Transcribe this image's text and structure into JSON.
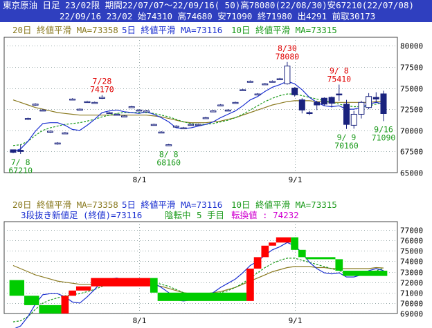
{
  "header": {
    "line1": "東京原油 日足 23/02限 期間22/07/07～22/09/16( 50)高78080(22/08/30)安67210(22/07/08)",
    "line2": "22/09/16 23/02 始74310 高74680 安71090 終71980 出4291 前取30173"
  },
  "legend_top": {
    "ma20": "20日 終値平滑 MA=73358",
    "ma5": "5日 終値平滑 MA=73116",
    "ma10": "10日 終値平滑 MA=73315"
  },
  "legend_bottom": {
    "ma20": "20日 終値平滑 MA=73358",
    "ma5": "5日 終値平滑 MA=73116",
    "ma10": "10日 終値平滑 MA=73315",
    "status_prefix": "3段抜き新値足 (終値)=73116",
    "status_reversal": "陰転中",
    "status_count": "5 手目",
    "status_turn": "転換値 : 74232"
  },
  "colors": {
    "header_bg": "#2f3fbf",
    "ma5": "#1a2fd0",
    "ma10": "#1a9a1a",
    "ma20": "#8a7a20",
    "up": "#ff0000",
    "down": "#00cc00",
    "candle": "#1a237e",
    "reversal": "#d000d0"
  },
  "chart_data": [
    {
      "type": "candlestick",
      "title": "東京原油 日足 23/02限",
      "x_ticks": [
        {
          "i": 17,
          "label": "8/1"
        },
        {
          "i": 38,
          "label": "9/1"
        }
      ],
      "ylim": [
        65000,
        81000
      ],
      "y_ticks": [
        65000,
        67500,
        70000,
        72500,
        75000,
        77500,
        80000
      ],
      "candles": [
        {
          "o": 67700,
          "h": 67700,
          "l": 67300,
          "c": 67400
        },
        {
          "o": 67650,
          "h": 68300,
          "l": 67210,
          "c": 67500
        },
        {
          "o": 71300,
          "h": 71500,
          "l": 71200,
          "c": 71400
        },
        {
          "o": 73000,
          "h": 73200,
          "l": 72900,
          "c": 73100
        },
        {
          "o": 72400,
          "h": 72500,
          "l": 72300,
          "c": 72400
        },
        {
          "o": 69800,
          "h": 70000,
          "l": 69700,
          "c": 69900
        },
        {
          "o": 68400,
          "h": 68600,
          "l": 68300,
          "c": 68500
        },
        {
          "o": 69700,
          "h": 69800,
          "l": 69600,
          "c": 69700
        },
        {
          "o": 73700,
          "h": 73800,
          "l": 73600,
          "c": 73700
        },
        {
          "o": 72500,
          "h": 72600,
          "l": 72400,
          "c": 72500
        },
        {
          "o": 73400,
          "h": 73500,
          "l": 73300,
          "c": 73400
        },
        {
          "o": 73300,
          "h": 73400,
          "l": 73200,
          "c": 73300
        },
        {
          "o": 73800,
          "h": 74170,
          "l": 73700,
          "c": 73900
        },
        {
          "o": 72100,
          "h": 72200,
          "l": 72000,
          "c": 72100
        },
        {
          "o": 71900,
          "h": 72000,
          "l": 71800,
          "c": 71900
        },
        {
          "o": 71700,
          "h": 71800,
          "l": 71600,
          "c": 71700
        },
        {
          "o": 72800,
          "h": 72900,
          "l": 72700,
          "c": 72800
        },
        {
          "o": 72400,
          "h": 72500,
          "l": 72300,
          "c": 72400
        },
        {
          "o": 72300,
          "h": 72400,
          "l": 72200,
          "c": 72300
        },
        {
          "o": 70700,
          "h": 70800,
          "l": 70600,
          "c": 70700
        },
        {
          "o": 69800,
          "h": 69900,
          "l": 69700,
          "c": 69800
        },
        {
          "o": 68300,
          "h": 68400,
          "l": 68160,
          "c": 68300
        },
        {
          "o": 70500,
          "h": 70600,
          "l": 70400,
          "c": 70500
        },
        {
          "o": 70300,
          "h": 70400,
          "l": 70200,
          "c": 70300
        },
        {
          "o": 70700,
          "h": 70800,
          "l": 70600,
          "c": 70700
        },
        {
          "o": 70700,
          "h": 70800,
          "l": 70600,
          "c": 70700
        },
        {
          "o": 71500,
          "h": 71600,
          "l": 71400,
          "c": 71500
        },
        {
          "o": 72300,
          "h": 72400,
          "l": 72200,
          "c": 72300
        },
        {
          "o": 73000,
          "h": 73100,
          "l": 72900,
          "c": 73000
        },
        {
          "o": 72400,
          "h": 72500,
          "l": 72300,
          "c": 72400
        },
        {
          "o": 73300,
          "h": 73400,
          "l": 73200,
          "c": 73300
        },
        {
          "o": 74800,
          "h": 74900,
          "l": 74700,
          "c": 74800
        },
        {
          "o": 75800,
          "h": 75900,
          "l": 75700,
          "c": 75800
        },
        {
          "o": 74300,
          "h": 74400,
          "l": 74200,
          "c": 74300
        },
        {
          "o": 75500,
          "h": 75600,
          "l": 75400,
          "c": 75500
        },
        {
          "o": 75800,
          "h": 75900,
          "l": 75700,
          "c": 75800
        },
        {
          "o": 76100,
          "h": 76200,
          "l": 76000,
          "c": 76100
        },
        {
          "o": 75500,
          "h": 78080,
          "l": 75400,
          "c": 77600
        },
        {
          "o": 75000,
          "h": 75100,
          "l": 74000,
          "c": 74200
        },
        {
          "o": 73600,
          "h": 73800,
          "l": 72000,
          "c": 72400
        },
        {
          "o": 72100,
          "h": 72300,
          "l": 71800,
          "c": 72000
        },
        {
          "o": 73300,
          "h": 73500,
          "l": 72400,
          "c": 73000
        },
        {
          "o": 73800,
          "h": 73900,
          "l": 72900,
          "c": 73100
        },
        {
          "o": 73900,
          "h": 74000,
          "l": 72700,
          "c": 73200
        },
        {
          "o": 74300,
          "h": 75410,
          "l": 73500,
          "c": 74200
        },
        {
          "o": 73100,
          "h": 73600,
          "l": 70160,
          "c": 70700
        },
        {
          "o": 70600,
          "h": 72300,
          "l": 70200,
          "c": 71900
        },
        {
          "o": 71900,
          "h": 73500,
          "l": 71400,
          "c": 73300
        },
        {
          "o": 72700,
          "h": 74400,
          "l": 72500,
          "c": 74000
        },
        {
          "o": 73900,
          "h": 74500,
          "l": 73300,
          "c": 73700
        },
        {
          "o": 74310,
          "h": 74680,
          "l": 71090,
          "c": 71980
        }
      ],
      "ma5": [
        67500,
        67800,
        68700,
        69900,
        70800,
        70900,
        70900,
        70600,
        70100,
        70000,
        70600,
        71300,
        72100,
        72300,
        72400,
        72200,
        72100,
        72000,
        72200,
        71900,
        71500,
        71000,
        70300,
        70200,
        70300,
        70500,
        70700,
        71000,
        71500,
        71900,
        72300,
        72900,
        73600,
        74000,
        74600,
        75100,
        75400,
        75800,
        75500,
        74800,
        73900,
        73300,
        72900,
        72800,
        72900,
        72500,
        72500,
        72700,
        73100,
        73300,
        73116
      ],
      "ma10": [
        68200,
        68300,
        68700,
        69400,
        70000,
        70300,
        70500,
        70700,
        70800,
        70900,
        71100,
        71300,
        71600,
        71800,
        72000,
        72100,
        72100,
        72100,
        72100,
        72000,
        71800,
        71600,
        71300,
        71000,
        70800,
        70700,
        70700,
        70800,
        71000,
        71200,
        71500,
        71900,
        72400,
        72900,
        73400,
        73800,
        74100,
        74300,
        74300,
        74100,
        73900,
        73700,
        73500,
        73300,
        73100,
        72900,
        72800,
        72800,
        72900,
        73100,
        73315
      ],
      "ma20": [
        73600,
        73300,
        73000,
        72700,
        72500,
        72300,
        72100,
        72000,
        71900,
        71800,
        71800,
        71800,
        71800,
        71800,
        71800,
        71800,
        71800,
        71800,
        71800,
        71700,
        71600,
        71400,
        71200,
        71000,
        70900,
        70900,
        70900,
        71000,
        71100,
        71300,
        71500,
        71800,
        72100,
        72400,
        72700,
        73000,
        73200,
        73400,
        73500,
        73500,
        73500,
        73400,
        73400,
        73300,
        73300,
        73300,
        73300,
        73300,
        73300,
        73400,
        73358
      ],
      "annotations": [
        {
          "i": 1,
          "label_date": "7/ 8",
          "label_value": "67210",
          "pos": "below",
          "color": "#1a9a1a"
        },
        {
          "i": 12,
          "label_date": "7/28",
          "label_value": "74170",
          "pos": "above",
          "color": "#e00000"
        },
        {
          "i": 21,
          "label_date": "8/ 8",
          "label_value": "68160",
          "pos": "below",
          "color": "#1a9a1a"
        },
        {
          "i": 37,
          "label_date": "8/30",
          "label_value": "78080",
          "pos": "above",
          "color": "#e00000"
        },
        {
          "i": 44,
          "label_date": "9/ 8",
          "label_value": "75410",
          "pos": "above",
          "color": "#e00000"
        },
        {
          "i": 45,
          "label_date": "9/ 9",
          "label_value": "70160",
          "pos": "below",
          "color": "#1a9a1a"
        },
        {
          "i": 50,
          "label_date": "9/16",
          "label_value": "71090",
          "pos": "below",
          "color": "#1a9a1a"
        }
      ]
    },
    {
      "type": "bar",
      "title": "3段抜き新値足 (終値)",
      "x_ticks": [
        {
          "i": 17,
          "label": "8/1"
        },
        {
          "i": 38,
          "label": "9/1"
        }
      ],
      "ylim": [
        69000,
        77800
      ],
      "y_ticks": [
        69000,
        70000,
        71000,
        72000,
        73000,
        74000,
        75000,
        76000,
        77000
      ],
      "blocks": [
        {
          "i0": 0,
          "i1": 2,
          "lo": 70700,
          "hi": 72200,
          "dir": "down"
        },
        {
          "i0": 2,
          "i1": 4,
          "lo": 69800,
          "hi": 70700,
          "dir": "down"
        },
        {
          "i0": 4,
          "i1": 7,
          "lo": 69000,
          "hi": 69800,
          "dir": "down"
        },
        {
          "i0": 7,
          "i1": 8,
          "lo": 69000,
          "hi": 70700,
          "dir": "up"
        },
        {
          "i0": 8,
          "i1": 9,
          "lo": 70700,
          "hi": 71200,
          "dir": "up"
        },
        {
          "i0": 9,
          "i1": 11,
          "lo": 71200,
          "hi": 71600,
          "dir": "up"
        },
        {
          "i0": 11,
          "i1": 19,
          "lo": 71600,
          "hi": 72400,
          "dir": "up"
        },
        {
          "i0": 19,
          "i1": 20,
          "lo": 71000,
          "hi": 72400,
          "dir": "down"
        },
        {
          "i0": 20,
          "i1": 32,
          "lo": 70200,
          "hi": 71000,
          "dir": "down"
        },
        {
          "i0": 32,
          "i1": 33,
          "lo": 70200,
          "hi": 73300,
          "dir": "up"
        },
        {
          "i0": 33,
          "i1": 34,
          "lo": 73300,
          "hi": 74400,
          "dir": "up"
        },
        {
          "i0": 34,
          "i1": 35,
          "lo": 74400,
          "hi": 75500,
          "dir": "up"
        },
        {
          "i0": 35,
          "i1": 36,
          "lo": 75500,
          "hi": 75800,
          "dir": "up"
        },
        {
          "i0": 36,
          "i1": 38,
          "lo": 75800,
          "hi": 76300,
          "dir": "up"
        },
        {
          "i0": 38,
          "i1": 39,
          "lo": 75100,
          "hi": 76300,
          "dir": "down"
        },
        {
          "i0": 39,
          "i1": 40,
          "lo": 74400,
          "hi": 75100,
          "dir": "down"
        },
        {
          "i0": 40,
          "i1": 44,
          "lo": 74200,
          "hi": 74400,
          "dir": "down"
        },
        {
          "i0": 44,
          "i1": 45,
          "lo": 73100,
          "hi": 74200,
          "dir": "down"
        },
        {
          "i0": 45,
          "i1": 50,
          "lo": 72600,
          "hi": 73100,
          "dir": "down"
        }
      ]
    }
  ]
}
